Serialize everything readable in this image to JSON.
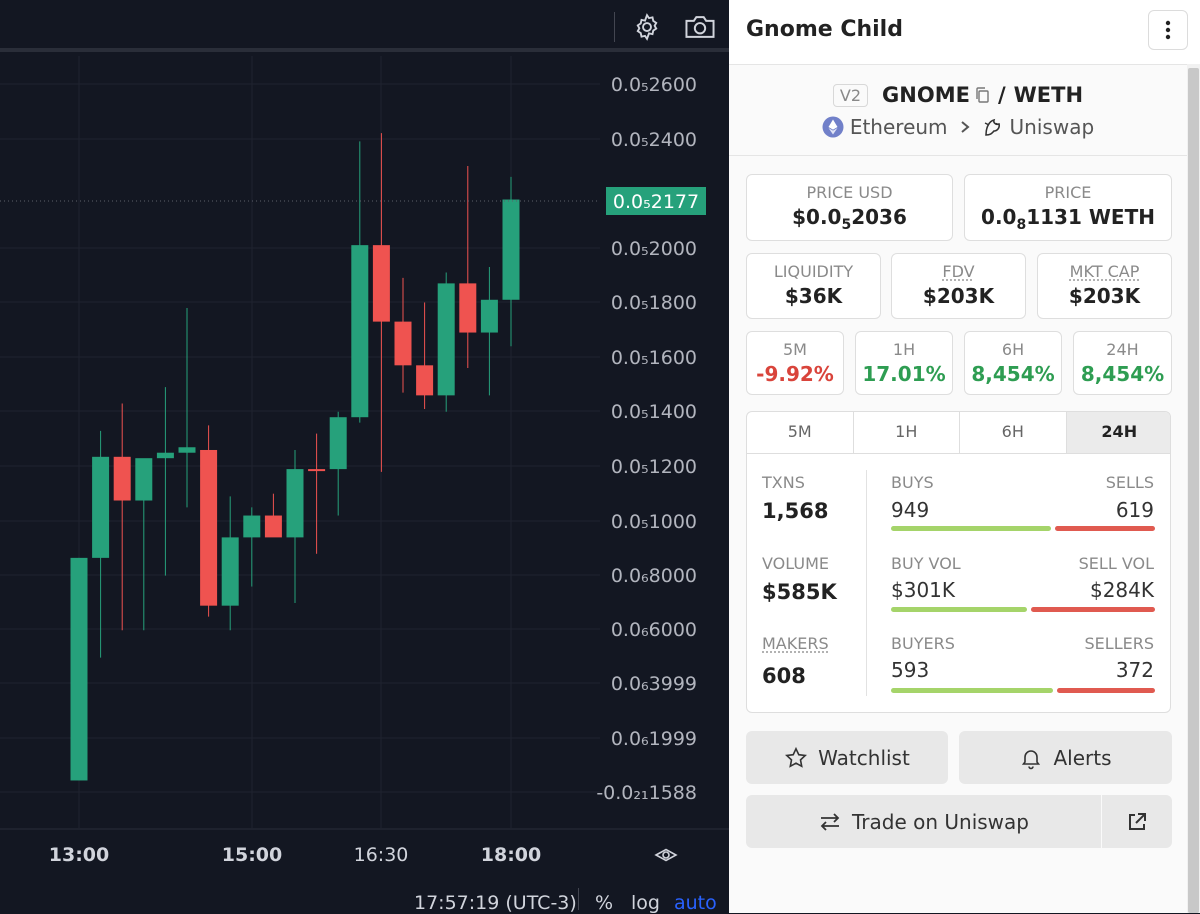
{
  "toolbar": {
    "settings_icon": "gear-icon",
    "screenshot_icon": "camera-icon"
  },
  "chart_data": {
    "type": "candlestick",
    "price_ticks": [
      "0.0₅2600",
      "0.0₅2400",
      "0.0₅2000",
      "0.0₅1800",
      "0.0₅1600",
      "0.0₅1400",
      "0.0₅1200",
      "0.0₅1000",
      "0.0₆8000",
      "0.0₆6000",
      "0.0₆3999",
      "0.0₆1999",
      "-0.0₂₁1588"
    ],
    "current_price": "0.0₅2177",
    "time_ticks": [
      "13:00",
      "15:00",
      "16:30",
      "18:00"
    ],
    "ylim": [
      -1.588e-23,
      2.7e-06
    ],
    "candles": [
      {
        "o": 5e-08,
        "h": 5e-08,
        "l": 5e-08,
        "c": 5e-08
      },
      {
        "o": 5e-08,
        "h": 8.65e-07,
        "l": 5e-08,
        "c": 8.65e-07
      },
      {
        "o": 8.65e-07,
        "h": 1.33e-06,
        "l": 5e-07,
        "c": 1.235e-06
      },
      {
        "o": 1.235e-06,
        "h": 1.43e-06,
        "l": 6e-07,
        "c": 1.075e-06
      },
      {
        "o": 1.075e-06,
        "h": 1.22e-06,
        "l": 6e-07,
        "c": 1.23e-06
      },
      {
        "o": 1.23e-06,
        "h": 1.49e-06,
        "l": 8e-07,
        "c": 1.25e-06
      },
      {
        "o": 1.25e-06,
        "h": 1.78e-06,
        "l": 1.05e-06,
        "c": 1.27e-06
      },
      {
        "o": 1.26e-06,
        "h": 1.35e-06,
        "l": 6.5e-07,
        "c": 6.9e-07
      },
      {
        "o": 6.9e-07,
        "h": 1.09e-06,
        "l": 6e-07,
        "c": 9.4e-07
      },
      {
        "o": 9.4e-07,
        "h": 1.05e-06,
        "l": 7.6e-07,
        "c": 1.02e-06
      },
      {
        "o": 1.02e-06,
        "h": 1.1e-06,
        "l": 9.5e-07,
        "c": 9.4e-07
      },
      {
        "o": 9.4e-07,
        "h": 1.26e-06,
        "l": 7e-07,
        "c": 1.19e-06
      },
      {
        "o": 1.19e-06,
        "h": 1.32e-06,
        "l": 8.8e-07,
        "c": 1.185e-06
      },
      {
        "o": 1.19e-06,
        "h": 1.4e-06,
        "l": 1.02e-06,
        "c": 1.38e-06
      },
      {
        "o": 1.38e-06,
        "h": 2.39e-06,
        "l": 1.36e-06,
        "c": 2.01e-06
      },
      {
        "o": 2.01e-06,
        "h": 2.42e-06,
        "l": 1.18e-06,
        "c": 1.73e-06
      },
      {
        "o": 1.73e-06,
        "h": 1.89e-06,
        "l": 1.47e-06,
        "c": 1.57e-06
      },
      {
        "o": 1.57e-06,
        "h": 1.8e-06,
        "l": 1.41e-06,
        "c": 1.46e-06
      },
      {
        "o": 1.46e-06,
        "h": 1.91e-06,
        "l": 1.4e-06,
        "c": 1.87e-06
      },
      {
        "o": 1.87e-06,
        "h": 2.3e-06,
        "l": 1.56e-06,
        "c": 1.69e-06
      },
      {
        "o": 1.69e-06,
        "h": 1.93e-06,
        "l": 1.46e-06,
        "c": 1.81e-06
      },
      {
        "o": 1.81e-06,
        "h": 2.26e-06,
        "l": 1.64e-06,
        "c": 2.177e-06
      }
    ]
  },
  "bottom_bar": {
    "clock": "17:57:19 (UTC-3)",
    "percent": "%",
    "log": "log",
    "auto": "auto"
  },
  "header": {
    "title": "Gnome Child",
    "menu_icon": "more-vertical-icon"
  },
  "pair": {
    "version": "V2",
    "base": "GNOME",
    "separator": "/",
    "quote": "WETH",
    "chain": "Ethereum",
    "dex": "Uniswap"
  },
  "prices": {
    "usd_label": "PRICE USD",
    "usd_prefix": "$0.0",
    "usd_sub": "5",
    "usd_suffix": "2036",
    "native_label": "PRICE",
    "native_prefix": "0.0",
    "native_sub": "8",
    "native_suffix": "1131 WETH"
  },
  "metrics": {
    "liquidity_label": "LIQUIDITY",
    "liquidity": "$36K",
    "fdv_label": "FDV",
    "fdv": "$203K",
    "mcap_label": "MKT CAP",
    "mcap": "$203K"
  },
  "changes": [
    {
      "label": "5M",
      "value": "-9.92%",
      "color": "#d9443b"
    },
    {
      "label": "1H",
      "value": "17.01%",
      "color": "#2e9d52"
    },
    {
      "label": "6H",
      "value": "8,454%",
      "color": "#2e9d52"
    },
    {
      "label": "24H",
      "value": "8,454%",
      "color": "#2e9d52"
    }
  ],
  "tabs": [
    "5M",
    "1H",
    "6H",
    "24H"
  ],
  "active_tab": "24H",
  "stats": {
    "txns_label": "TXNS",
    "txns": "1,568",
    "volume_label": "VOLUME",
    "volume": "$585K",
    "makers_label": "MAKERS",
    "makers": "608",
    "buys_label": "BUYS",
    "buys": "949",
    "sells_label": "SELLS",
    "sells": "619",
    "buys_fraction": 0.605,
    "buyvol_label": "BUY VOL",
    "buyvol": "$301K",
    "sellvol_label": "SELL VOL",
    "sellvol": "$284K",
    "buyvol_fraction": 0.515,
    "buyers_label": "BUYERS",
    "buyers": "593",
    "sellers_label": "SELLERS",
    "sellers": "372",
    "buyers_fraction": 0.615
  },
  "actions": {
    "watchlist": "Watchlist",
    "alerts": "Alerts",
    "trade": "Trade on Uniswap"
  }
}
